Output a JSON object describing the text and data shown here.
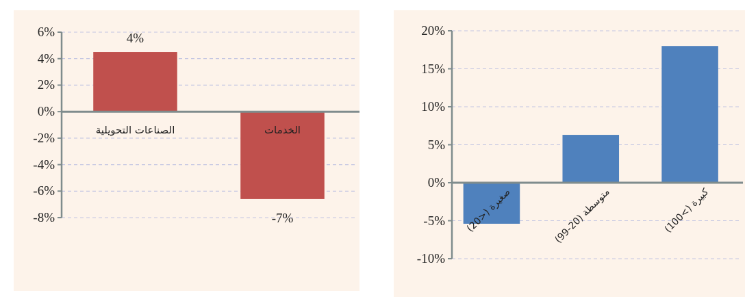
{
  "chart_data": [
    {
      "type": "bar",
      "categories": [
        "الصناعات التحويلية",
        "الخدمات"
      ],
      "values": [
        4.5,
        -6.6
      ],
      "value_labels": [
        "4%",
        "-7%"
      ],
      "color": "#c0504d",
      "ylim": [
        -8,
        6
      ],
      "yticks": [
        {
          "value": -8,
          "label": "-8%"
        },
        {
          "value": -6,
          "label": "-6%"
        },
        {
          "value": -4,
          "label": "-4%"
        },
        {
          "value": -2,
          "label": "-2%"
        },
        {
          "value": 0,
          "label": "0%"
        },
        {
          "value": 2,
          "label": "2%"
        },
        {
          "value": 4,
          "label": "4%"
        },
        {
          "value": 6,
          "label": "6%"
        }
      ],
      "grid": "y"
    },
    {
      "type": "bar",
      "categories": [
        "صغيرة (<20)",
        "متوسطة (20-99)",
        "كبيرة (>100)"
      ],
      "values": [
        -5.4,
        6.3,
        18.0
      ],
      "color": "#4f81bd",
      "ylim": [
        -10,
        20
      ],
      "yticks": [
        {
          "value": -10,
          "label": "-10%"
        },
        {
          "value": -5,
          "label": "-5%"
        },
        {
          "value": 0,
          "label": "0%"
        },
        {
          "value": 5,
          "label": "5%"
        },
        {
          "value": 10,
          "label": "10%"
        },
        {
          "value": 15,
          "label": "15%"
        },
        {
          "value": 20,
          "label": "20%"
        }
      ],
      "grid": "y"
    }
  ]
}
